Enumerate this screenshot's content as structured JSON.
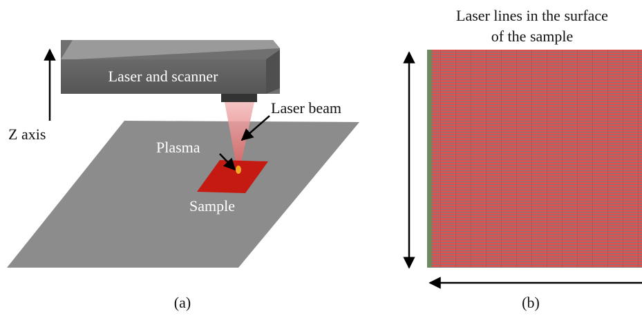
{
  "panel_a": {
    "scanner_label": "Laser and scanner",
    "beam_label": "Laser beam",
    "z_axis_label": "Z axis",
    "plasma_label": "Plasma",
    "sample_label": "Sample",
    "caption": "(a)"
  },
  "panel_b": {
    "title_lines": [
      "Laser lines in the surface",
      "of the sample"
    ],
    "caption": "(b)"
  }
}
